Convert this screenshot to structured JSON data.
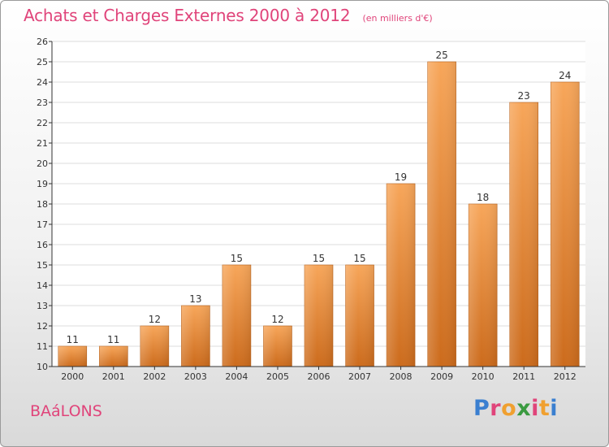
{
  "header": {
    "title": "Achats et Charges Externes 2000 à 2012",
    "subtitle": "(en milliers d'€)"
  },
  "footer": {
    "place": "BAáLONS",
    "logo": "Proxiti",
    "logo_colors": [
      "#3a7fd0",
      "#e0447a",
      "#f0a030",
      "#3a9a40",
      "#e0447a",
      "#f0a030",
      "#3a7fd0"
    ]
  },
  "colors": {
    "bar_top": "#f7a65a",
    "bar_bottom": "#cc6b1c",
    "title": "#e0447a",
    "grid": "#dcdcdc",
    "axis": "#333333"
  },
  "chart_data": {
    "type": "bar",
    "title": "Achats et Charges Externes 2000 à 2012",
    "subtitle": "(en milliers d'€)",
    "xlabel": "",
    "ylabel": "",
    "categories": [
      "2000",
      "2001",
      "2002",
      "2003",
      "2004",
      "2005",
      "2006",
      "2007",
      "2008",
      "2009",
      "2010",
      "2011",
      "2012"
    ],
    "values": [
      11,
      11,
      12,
      13,
      15,
      12,
      15,
      15,
      19,
      25,
      18,
      23,
      24
    ],
    "data_labels": [
      "11",
      "11",
      "12",
      "13",
      "15",
      "12",
      "15",
      "15",
      "19",
      "25",
      "18",
      "23",
      "24"
    ],
    "ylim": [
      10,
      26
    ],
    "yticks": [
      "10",
      "11",
      "12",
      "13",
      "14",
      "15",
      "16",
      "17",
      "18",
      "19",
      "20",
      "21",
      "22",
      "23",
      "24",
      "25",
      "26"
    ],
    "grid": true
  }
}
